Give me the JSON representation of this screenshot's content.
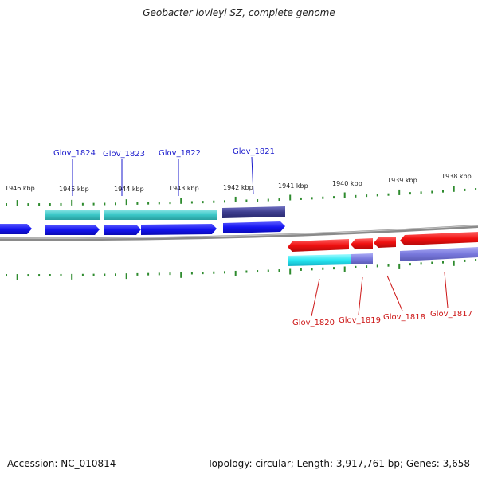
{
  "title": "Geobacter lovleyi SZ, complete genome",
  "footer": {
    "accession": "Accession: NC_010814",
    "summary": "Topology: circular; Length: 3,917,761 bp; Genes: 3,658"
  },
  "colors": {
    "forward_gene": "#1414f0",
    "reverse_gene": "#f01010",
    "cds_forward": "#3cc8c8",
    "cds_purple_dark": "#3c3c8c",
    "cds_purple_light": "#7878dc",
    "cds_cyan_bright": "#28e6f0",
    "tick": "#2e8b2e",
    "backbone": "#8a8a8a",
    "label_blue": "#1a1acc",
    "label_red": "#cc1414"
  },
  "kbp_labels": [
    "1946 kbp",
    "1945 kbp",
    "1944 kbp",
    "1943 kbp",
    "1942 kbp",
    "1941 kbp",
    "1940 kbp",
    "1939 kbp",
    "1938 kbp"
  ],
  "genes_top": [
    "Glov_1824",
    "Glov_1823",
    "Glov_1822",
    "Glov_1821"
  ],
  "genes_bottom": [
    "Glov_1820",
    "Glov_1819",
    "Glov_1818",
    "Glov_1817"
  ]
}
